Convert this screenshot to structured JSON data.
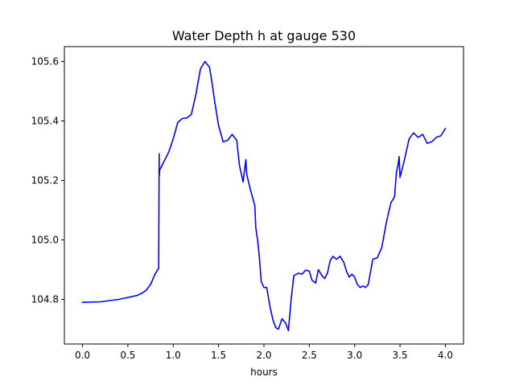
{
  "chart_data": {
    "type": "line",
    "title": "Water Depth h at gauge 530",
    "xlabel": "hours",
    "ylabel": "",
    "xlim": [
      -0.2,
      4.2
    ],
    "ylim": [
      104.65,
      105.65
    ],
    "xticks": [
      0.0,
      0.5,
      1.0,
      1.5,
      2.0,
      2.5,
      3.0,
      3.5,
      4.0
    ],
    "xtick_labels": [
      "0.0",
      "0.5",
      "1.0",
      "1.5",
      "2.0",
      "2.5",
      "3.0",
      "3.5",
      "4.0"
    ],
    "yticks": [
      104.8,
      105.0,
      105.2,
      105.4,
      105.6
    ],
    "ytick_labels": [
      "104.8",
      "105.0",
      "105.2",
      "105.4",
      "105.6"
    ],
    "grid": false,
    "series": [
      {
        "color": "#0000ff",
        "x": [
          0.0,
          0.2,
          0.4,
          0.6,
          0.65,
          0.7,
          0.75,
          0.8,
          0.84,
          0.845,
          0.846,
          0.85,
          0.9,
          0.95,
          1.0,
          1.05,
          1.1,
          1.15,
          1.2,
          1.25,
          1.3,
          1.35,
          1.4,
          1.43,
          1.46,
          1.5,
          1.55,
          1.6,
          1.65,
          1.7,
          1.73,
          1.77,
          1.8,
          1.81,
          1.85,
          1.9,
          1.91,
          1.93,
          1.95,
          1.97,
          2.0,
          2.03,
          2.07,
          2.1,
          2.13,
          2.16,
          2.2,
          2.24,
          2.27,
          2.3,
          2.33,
          2.38,
          2.42,
          2.46,
          2.5,
          2.53,
          2.57,
          2.6,
          2.64,
          2.67,
          2.7,
          2.73,
          2.76,
          2.8,
          2.84,
          2.88,
          2.91,
          2.94,
          2.97,
          3.0,
          3.03,
          3.06,
          3.09,
          3.12,
          3.15,
          3.2,
          3.25,
          3.3,
          3.35,
          3.4,
          3.44,
          3.46,
          3.47,
          3.48,
          3.49,
          3.5,
          3.55,
          3.6,
          3.65,
          3.7,
          3.75,
          3.8,
          3.85,
          3.9,
          3.95,
          4.0
        ],
        "y": [
          104.79,
          104.792,
          104.8,
          104.813,
          104.82,
          104.83,
          104.85,
          104.885,
          104.905,
          105.29,
          105.215,
          105.235,
          105.265,
          105.295,
          105.34,
          105.395,
          105.408,
          105.41,
          105.422,
          105.49,
          105.575,
          105.6,
          105.58,
          105.525,
          105.46,
          105.385,
          105.33,
          105.335,
          105.355,
          105.335,
          105.25,
          105.195,
          105.27,
          105.22,
          105.17,
          105.115,
          105.04,
          105.0,
          104.94,
          104.86,
          104.84,
          104.84,
          104.77,
          104.73,
          104.705,
          104.7,
          104.735,
          104.72,
          104.695,
          104.8,
          104.88,
          104.888,
          104.885,
          104.898,
          104.895,
          104.865,
          104.855,
          104.9,
          104.88,
          104.87,
          104.888,
          104.93,
          104.945,
          104.935,
          104.945,
          104.925,
          104.895,
          104.875,
          104.885,
          104.875,
          104.85,
          104.84,
          104.845,
          104.84,
          104.85,
          104.935,
          104.94,
          104.975,
          105.06,
          105.125,
          105.145,
          105.225,
          105.24,
          105.255,
          105.28,
          105.21,
          105.27,
          105.34,
          105.36,
          105.345,
          105.355,
          105.325,
          105.33,
          105.345,
          105.35,
          105.375
        ]
      }
    ]
  }
}
